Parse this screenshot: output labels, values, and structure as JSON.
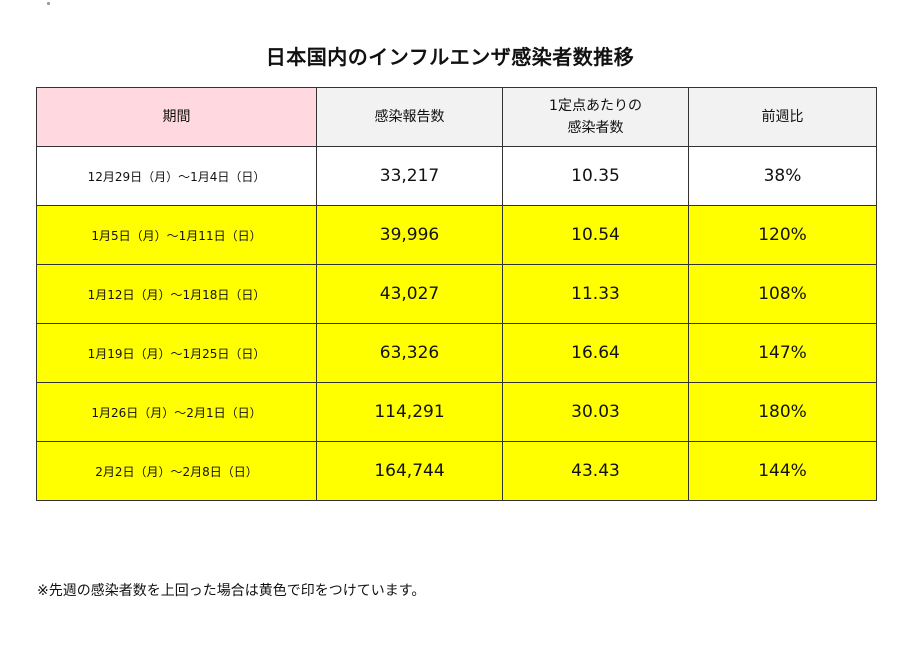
{
  "page": {
    "title": "日本国内のインフルエンザ感染者数推移",
    "footnote": "※先週の感染者数を上回った場合は黄色で印をつけています。"
  },
  "table": {
    "headers": {
      "period": "期間",
      "reports": "感染報告数",
      "per_site_line1": "1定点あたりの",
      "per_site_line2": "感染者数",
      "week_ratio": "前週比"
    },
    "highlight_color": "#ffff00",
    "header_accent_color": "#ffd9df",
    "rows": [
      {
        "period": "12月29日（月）～1月4日（日）",
        "reports": "33,217",
        "per_site": "10.35",
        "ratio": "38%",
        "highlighted": false
      },
      {
        "period": "1月5日（月）～1月11日（日）",
        "reports": "39,996",
        "per_site": "10.54",
        "ratio": "120%",
        "highlighted": true
      },
      {
        "period": "1月12日（月）～1月18日（日）",
        "reports": "43,027",
        "per_site": "11.33",
        "ratio": "108%",
        "highlighted": true
      },
      {
        "period": "1月19日（月）～1月25日（日）",
        "reports": "63,326",
        "per_site": "16.64",
        "ratio": "147%",
        "highlighted": true
      },
      {
        "period": "1月26日（月）～2月1日（日）",
        "reports": "114,291",
        "per_site": "30.03",
        "ratio": "180%",
        "highlighted": true
      },
      {
        "period": "2月2日（月）～2月8日（日）",
        "reports": "164,744",
        "per_site": "43.43",
        "ratio": "144%",
        "highlighted": true
      }
    ]
  }
}
